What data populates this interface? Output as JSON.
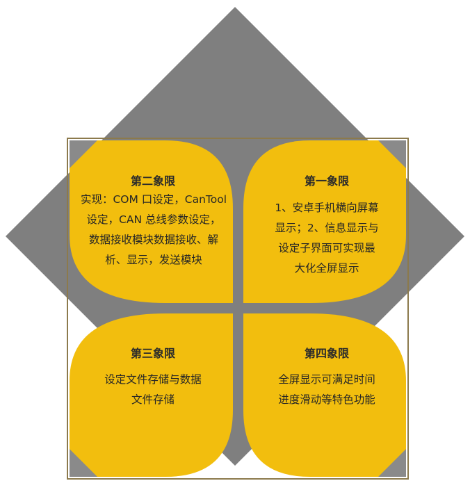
{
  "colors": {
    "diamond": "#7f7f7f",
    "leaf": "#f2be0e",
    "frame": "#8c7a4c",
    "text": "#262626"
  },
  "quadrants": {
    "q2": {
      "title": "第二象限",
      "lines": [
        "实现：COM 口设定，CanTool",
        "设定，CAN 总线参数设定，",
        "数据接收模块数据接收、解",
        "析、显示，发送模块"
      ]
    },
    "q1": {
      "title": "第一象限",
      "lines": [
        "1、安卓手机横向屏幕",
        "显示；2、信息显示与",
        "设定子界面可实现最",
        "大化全屏显示"
      ]
    },
    "q3": {
      "title": "第三象限",
      "lines": [
        "设定文件存储与数据",
        "文件存储"
      ]
    },
    "q4": {
      "title": "第四象限",
      "lines": [
        "全屏显示可满足时间",
        "进度滑动等特色功能"
      ]
    }
  }
}
